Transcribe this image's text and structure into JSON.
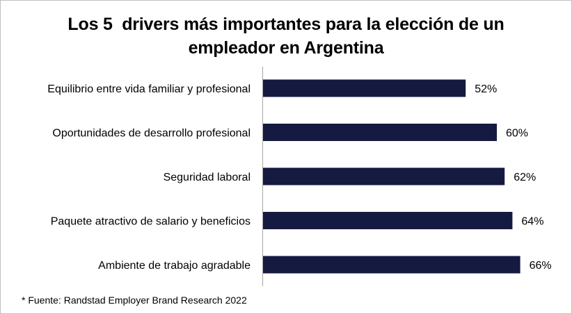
{
  "chart_data": {
    "type": "bar",
    "orientation": "horizontal",
    "title_lines": [
      "Los 5  drivers más importantes para la elección de un",
      "empleador en Argentina"
    ],
    "categories": [
      "Equilibrio entre vida familiar y profesional",
      "Oportunidades de desarrollo profesional",
      "Seguridad laboral",
      "Paquete atractivo de salario y beneficios",
      "Ambiente de trabajo agradable"
    ],
    "values": [
      52,
      60,
      62,
      64,
      66
    ],
    "value_labels": [
      "52%",
      "60%",
      "62%",
      "64%",
      "66%"
    ],
    "xlim": [
      0,
      100
    ],
    "bar_color": "#151a41",
    "axis_color": "#a6a6a6",
    "grid": false,
    "legend": "none"
  },
  "footer": {
    "source": "* Fuente: Randstad Employer Brand Research 2022"
  }
}
